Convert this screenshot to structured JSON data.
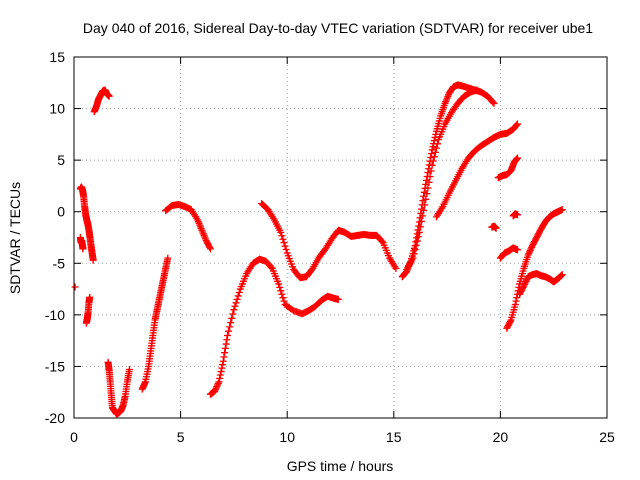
{
  "chart_data": {
    "type": "scatter",
    "title": "Day 040 of 2016, Sidereal Day-to-day VTEC variation (SDTVAR) for receiver ube1",
    "xlabel": "GPS time / hours",
    "ylabel": "SDTVAR / TECUs",
    "xlim": [
      0,
      25
    ],
    "ylim": [
      -20,
      15
    ],
    "xticks": [
      "0",
      "5",
      "10",
      "15",
      "20",
      "25"
    ],
    "yticks": [
      "-20",
      "-15",
      "-10",
      "-5",
      "0",
      "5",
      "10",
      "15"
    ],
    "grid": true,
    "marker": "+",
    "color": "#ff0000",
    "series": [
      {
        "x": [
          0.05
        ],
        "y": [
          -7.3
        ]
      },
      {
        "x": [
          0.3,
          0.33,
          0.36,
          0.39,
          0.42
        ],
        "y": [
          -2.5,
          -3.0,
          -2.8,
          -3.2,
          -3.6
        ]
      },
      {
        "x": [
          0.3,
          0.35,
          0.4,
          0.45,
          0.5,
          0.55,
          0.6,
          0.65,
          0.7,
          0.75,
          0.8,
          0.85,
          0.9
        ],
        "y": [
          2.2,
          2.4,
          2.1,
          1.5,
          0.5,
          -0.3,
          -0.8,
          -1.2,
          -1.8,
          -2.5,
          -3.3,
          -4.0,
          -4.7
        ]
      },
      {
        "x": [
          0.58,
          0.62,
          0.66,
          0.7,
          0.74
        ],
        "y": [
          -10.8,
          -10.4,
          -9.8,
          -8.8,
          -8.3
        ]
      },
      {
        "x": [
          0.95,
          1.05,
          1.15,
          1.25,
          1.35,
          1.45,
          1.55,
          1.65
        ],
        "y": [
          9.7,
          10.2,
          10.9,
          11.3,
          11.7,
          11.8,
          11.4,
          11.2
        ]
      },
      {
        "x": [
          1.6,
          1.65,
          1.7,
          1.75,
          1.8,
          1.9,
          2.0,
          2.1,
          2.2,
          2.3,
          2.4,
          2.5,
          2.6
        ],
        "y": [
          -14.6,
          -15.4,
          -16.5,
          -17.8,
          -19.0,
          -19.3,
          -19.6,
          -19.5,
          -19.3,
          -18.8,
          -17.9,
          -16.5,
          -15.3
        ]
      },
      {
        "x": [
          3.2,
          3.35,
          3.5,
          3.6,
          3.7,
          3.8,
          3.9,
          4.0,
          4.1,
          4.2,
          4.3,
          4.4
        ],
        "y": [
          -17.2,
          -16.5,
          -15.0,
          -13.5,
          -12.0,
          -10.5,
          -9.5,
          -8.5,
          -7.5,
          -6.5,
          -5.5,
          -4.5
        ]
      },
      {
        "x": [
          4.3,
          4.6,
          4.9,
          5.2,
          5.5,
          5.8,
          6.0,
          6.2,
          6.4
        ],
        "y": [
          0.1,
          0.6,
          0.7,
          0.5,
          0.2,
          -0.8,
          -1.8,
          -2.8,
          -3.6
        ]
      },
      {
        "x": [
          6.4,
          6.6,
          6.8,
          7.0,
          7.2,
          7.5,
          7.8,
          8.1,
          8.4,
          8.7,
          9.0,
          9.3,
          9.6,
          9.9,
          10.3,
          10.7,
          11.0,
          11.3,
          11.6,
          11.9,
          12.2,
          12.4
        ],
        "y": [
          -17.7,
          -17.4,
          -16.5,
          -14.5,
          -12.0,
          -9.5,
          -7.5,
          -6.0,
          -5.0,
          -4.6,
          -4.8,
          -5.5,
          -7.0,
          -9.0,
          -9.6,
          -9.9,
          -9.6,
          -9.2,
          -8.6,
          -8.2,
          -8.4,
          -8.5
        ]
      },
      {
        "x": [
          8.8,
          9.1,
          9.4,
          9.7,
          10.0,
          10.3,
          10.6,
          10.9,
          11.2,
          11.5,
          11.8,
          12.1,
          12.4,
          12.7,
          13.0,
          13.3,
          13.6,
          13.9,
          14.2,
          14.5,
          14.8,
          15.1
        ],
        "y": [
          0.8,
          0.2,
          -0.8,
          -2.0,
          -4.0,
          -5.6,
          -6.4,
          -6.3,
          -5.5,
          -4.4,
          -3.6,
          -2.6,
          -1.8,
          -2.0,
          -2.4,
          -2.3,
          -2.2,
          -2.3,
          -2.3,
          -3.0,
          -4.5,
          -5.5
        ]
      },
      {
        "x": [
          15.4,
          15.6,
          15.8,
          16.0,
          16.2,
          16.4,
          16.6,
          16.8,
          17.0,
          17.2,
          17.4,
          17.6,
          17.8,
          18.0,
          18.2,
          18.5,
          18.8,
          19.1,
          19.4,
          19.7
        ],
        "y": [
          -6.3,
          -5.8,
          -4.8,
          -3.3,
          -1.0,
          1.5,
          3.8,
          6.0,
          7.8,
          9.3,
          10.5,
          11.5,
          12.1,
          12.3,
          12.2,
          12.0,
          11.8,
          11.6,
          11.2,
          10.5
        ]
      },
      {
        "x": [
          15.6,
          15.9,
          16.2,
          16.5,
          16.8,
          17.1,
          17.4,
          17.7,
          18.0,
          18.3,
          18.6,
          18.9
        ],
        "y": [
          -5.6,
          -4.5,
          -2.0,
          1.2,
          4.5,
          7.0,
          8.5,
          9.6,
          10.5,
          11.2,
          11.6,
          11.8
        ]
      },
      {
        "x": [
          17.0,
          17.3,
          17.6,
          17.9,
          18.2,
          18.5,
          18.8,
          19.1,
          19.4,
          19.7,
          20.0,
          20.3,
          20.6,
          20.8
        ],
        "y": [
          -0.5,
          0.5,
          1.8,
          3.0,
          4.2,
          5.2,
          5.9,
          6.4,
          6.8,
          7.2,
          7.5,
          7.6,
          8.0,
          8.5
        ]
      },
      {
        "x": [
          19.6,
          19.7,
          19.8
        ],
        "y": [
          -1.5,
          -1.4,
          -1.6
        ]
      },
      {
        "x": [
          19.9,
          20.1,
          20.3,
          20.5,
          20.65,
          20.8
        ],
        "y": [
          3.3,
          3.5,
          3.6,
          4.0,
          4.8,
          5.2
        ]
      },
      {
        "x": [
          20.0,
          20.2,
          20.4,
          20.6,
          20.8
        ],
        "y": [
          -4.5,
          -4.0,
          -3.8,
          -3.5,
          -3.7
        ]
      },
      {
        "x": [
          20.6,
          20.7,
          20.8
        ],
        "y": [
          -0.4,
          -0.2,
          -0.3
        ]
      },
      {
        "x": [
          20.3,
          20.5,
          20.7,
          20.9,
          21.1,
          21.3,
          21.5,
          21.7,
          21.9,
          22.1,
          22.3,
          22.5,
          22.7,
          22.9
        ],
        "y": [
          -11.3,
          -10.5,
          -9.0,
          -7.0,
          -5.5,
          -4.2,
          -3.3,
          -2.5,
          -1.7,
          -1.0,
          -0.5,
          -0.2,
          0.0,
          0.2
        ]
      },
      {
        "x": [
          20.9,
          21.1,
          21.3,
          21.5,
          21.7,
          21.9,
          22.1,
          22.3,
          22.5,
          22.7,
          22.9
        ],
        "y": [
          -8.0,
          -7.2,
          -6.3,
          -6.1,
          -6.0,
          -6.2,
          -6.3,
          -6.5,
          -6.8,
          -6.5,
          -6.1
        ]
      }
    ]
  }
}
